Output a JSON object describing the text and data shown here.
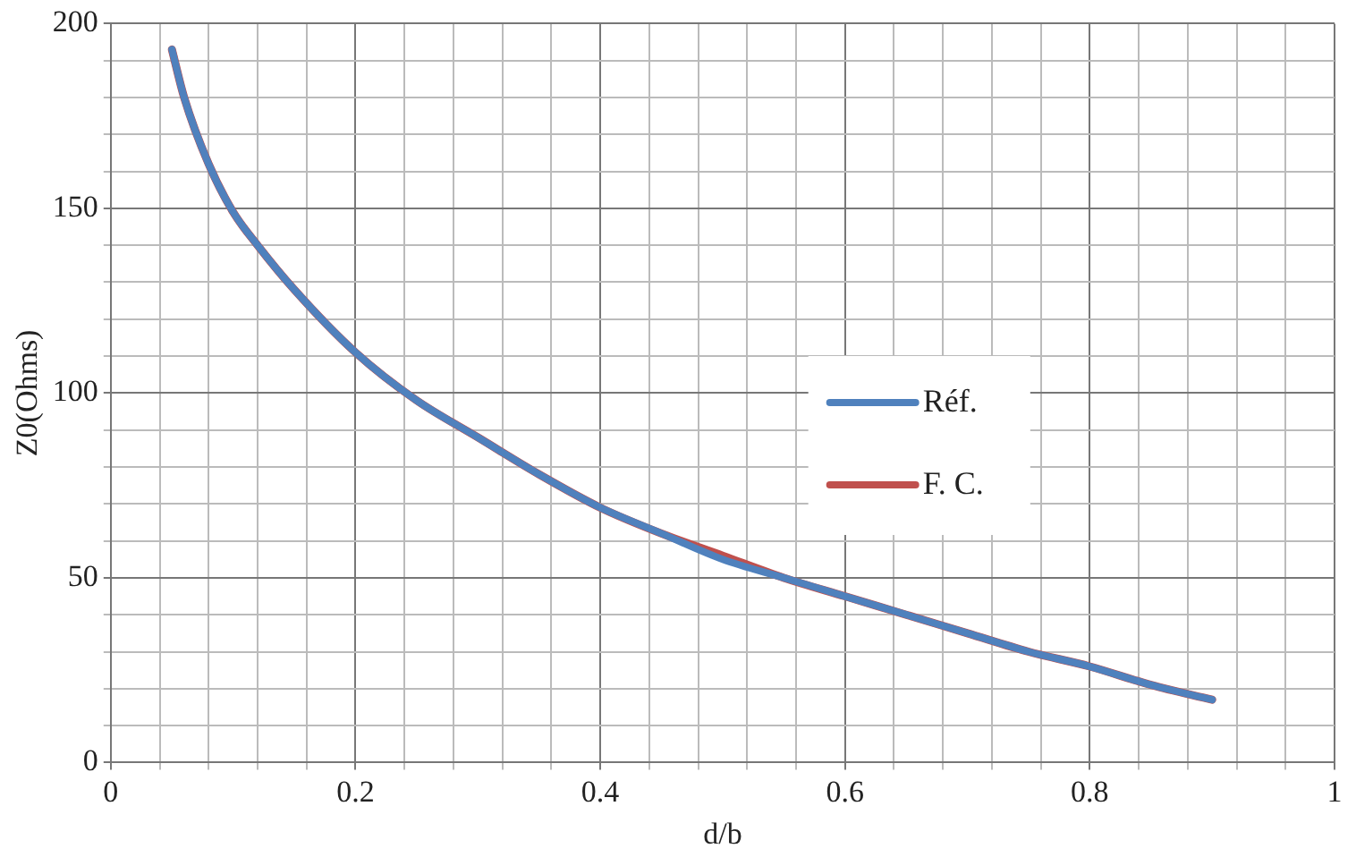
{
  "chart_data": {
    "type": "line",
    "xlabel": "d/b",
    "ylabel": "Z0(Ohms)",
    "xlim": [
      0,
      1
    ],
    "ylim": [
      0,
      200
    ],
    "xticks": [
      0,
      {
        "value": 0.04,
        "label": null
      },
      {
        "value": 0.08,
        "label": null
      },
      {
        "value": 0.12,
        "label": null
      },
      {
        "value": 0.16,
        "label": null
      },
      0.2,
      {
        "value": 0.24,
        "label": null
      },
      {
        "value": 0.28,
        "label": null
      },
      {
        "value": 0.32,
        "label": null
      },
      {
        "value": 0.36,
        "label": null
      },
      0.4,
      {
        "value": 0.44,
        "label": null
      },
      {
        "value": 0.48,
        "label": null
      },
      {
        "value": 0.52,
        "label": null
      },
      {
        "value": 0.56,
        "label": null
      },
      0.6,
      {
        "value": 0.64,
        "label": null
      },
      {
        "value": 0.68,
        "label": null
      },
      {
        "value": 0.72,
        "label": null
      },
      {
        "value": 0.76,
        "label": null
      },
      0.8,
      {
        "value": 0.84,
        "label": null
      },
      {
        "value": 0.88,
        "label": null
      },
      {
        "value": 0.92,
        "label": null
      },
      {
        "value": 0.96,
        "label": null
      },
      1
    ],
    "yticks": [
      0,
      {
        "value": 10,
        "label": null
      },
      {
        "value": 20,
        "label": null
      },
      {
        "value": 30,
        "label": null
      },
      {
        "value": 40,
        "label": null
      },
      50,
      {
        "value": 60,
        "label": null
      },
      {
        "value": 70,
        "label": null
      },
      {
        "value": 80,
        "label": null
      },
      {
        "value": 90,
        "label": null
      },
      100,
      {
        "value": 110,
        "label": null
      },
      {
        "value": 120,
        "label": null
      },
      {
        "value": 130,
        "label": null
      },
      {
        "value": 140,
        "label": null
      },
      150,
      {
        "value": 160,
        "label": null
      },
      {
        "value": 170,
        "label": null
      },
      {
        "value": 180,
        "label": null
      },
      {
        "value": 190,
        "label": null
      },
      200
    ],
    "x": [
      0.05,
      0.06,
      0.08,
      0.1,
      0.12,
      0.15,
      0.2,
      0.25,
      0.3,
      0.35,
      0.4,
      0.45,
      0.5,
      0.55,
      0.6,
      0.65,
      0.7,
      0.75,
      0.8,
      0.85,
      0.9
    ],
    "series": [
      {
        "name": "Réf.",
        "color": "#4f81bd",
        "values": [
          193,
          180,
          162,
          149,
          140,
          128,
          111,
          98,
          88,
          78,
          69,
          62,
          55,
          50,
          45,
          40,
          35,
          30,
          26,
          21,
          17
        ]
      },
      {
        "name": "F. C.",
        "color": "#c0504d",
        "values": [
          193,
          180,
          162,
          149,
          140,
          128,
          111,
          98,
          88,
          78,
          69,
          62,
          56,
          50,
          45,
          40,
          35,
          30,
          26,
          21,
          17
        ]
      }
    ],
    "grid": true,
    "legend": "right",
    "marker": "none",
    "line_style": "solid"
  }
}
